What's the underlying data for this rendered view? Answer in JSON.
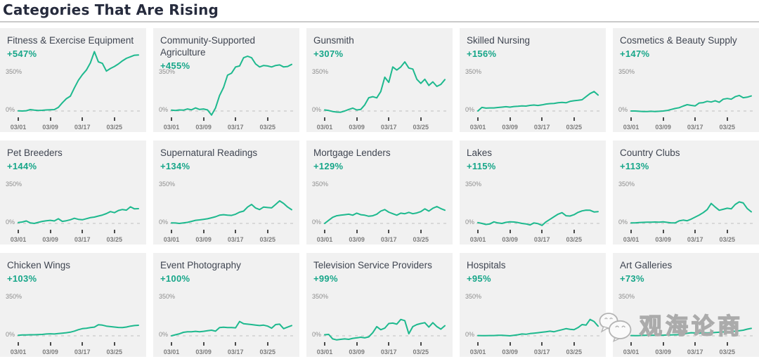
{
  "header": {
    "title": "Categories That Are Rising"
  },
  "watermark": {
    "text": "观海论商",
    "icon": "wechat-icon"
  },
  "axis": {
    "y_top_label": "350%",
    "y_zero_label": "0%",
    "x_ticks": [
      "03/01",
      "03/09",
      "03/17",
      "03/25"
    ],
    "tick_days": [
      1,
      9,
      17,
      25
    ],
    "days_total": 31,
    "y_max": 350
  },
  "colors": {
    "line": "#1eb98e",
    "percent_text": "#17a689",
    "panel_bg": "#f1f1f1",
    "heading_text": "#262b3d",
    "axis_text": "#8c8c8c",
    "zero_dash": "#c9c9c9"
  },
  "chart_data": [
    {
      "type": "line",
      "title": "Fitness & Exercise Equipment",
      "change": "+547%",
      "values": [
        2,
        0,
        3,
        14,
        8,
        5,
        7,
        10,
        12,
        14,
        35,
        80,
        120,
        145,
        225,
        300,
        355,
        400,
        470,
        580,
        480,
        465,
        390,
        415,
        435,
        460,
        490,
        515,
        530,
        545,
        547
      ]
    },
    {
      "type": "line",
      "title": "Community-Supported Agriculture",
      "change": "+455%",
      "values": [
        8,
        5,
        10,
        8,
        20,
        12,
        30,
        15,
        20,
        10,
        -40,
        30,
        150,
        230,
        350,
        370,
        430,
        440,
        520,
        535,
        520,
        460,
        430,
        445,
        440,
        430,
        445,
        450,
        430,
        435,
        455
      ]
    },
    {
      "type": "line",
      "title": "Gunsmith",
      "change": "+307%",
      "values": [
        10,
        5,
        -5,
        -10,
        -12,
        0,
        15,
        28,
        10,
        15,
        60,
        130,
        140,
        128,
        190,
        330,
        280,
        430,
        400,
        430,
        480,
        420,
        410,
        310,
        270,
        310,
        250,
        285,
        240,
        260,
        307
      ]
    },
    {
      "type": "line",
      "title": "Skilled Nursing",
      "change": "+156%",
      "values": [
        0,
        35,
        28,
        30,
        30,
        34,
        38,
        42,
        38,
        44,
        46,
        50,
        48,
        55,
        58,
        54,
        60,
        68,
        72,
        74,
        80,
        84,
        80,
        94,
        100,
        104,
        110,
        140,
        170,
        190,
        156
      ]
    },
    {
      "type": "line",
      "title": "Cosmetics & Beauty Supply",
      "change": "+147%",
      "values": [
        0,
        0,
        -3,
        -5,
        -5,
        -3,
        -5,
        -3,
        0,
        5,
        15,
        25,
        32,
        48,
        62,
        55,
        50,
        78,
        82,
        95,
        88,
        100,
        85,
        115,
        122,
        115,
        140,
        152,
        130,
        135,
        147
      ]
    },
    {
      "type": "line",
      "title": "Pet Breeders",
      "change": "+144%",
      "values": [
        8,
        14,
        24,
        5,
        0,
        10,
        20,
        26,
        30,
        24,
        45,
        20,
        26,
        36,
        50,
        40,
        36,
        46,
        56,
        62,
        72,
        82,
        96,
        115,
        105,
        126,
        136,
        130,
        162,
        142,
        144
      ]
    },
    {
      "type": "line",
      "title": "Supernatural Readings",
      "change": "+134%",
      "values": [
        5,
        4,
        0,
        5,
        10,
        20,
        30,
        34,
        40,
        45,
        55,
        65,
        80,
        85,
        80,
        78,
        90,
        110,
        120,
        160,
        185,
        150,
        135,
        160,
        155,
        152,
        185,
        220,
        195,
        160,
        134
      ]
    },
    {
      "type": "line",
      "title": "Mortgage Lenders",
      "change": "+129%",
      "values": [
        0,
        30,
        60,
        75,
        80,
        85,
        90,
        80,
        100,
        85,
        80,
        70,
        75,
        90,
        120,
        135,
        110,
        95,
        80,
        100,
        95,
        108,
        95,
        102,
        115,
        142,
        120,
        148,
        165,
        145,
        129
      ]
    },
    {
      "type": "line",
      "title": "Lakes",
      "change": "+115%",
      "values": [
        8,
        0,
        -10,
        -5,
        15,
        5,
        0,
        10,
        15,
        14,
        8,
        0,
        -5,
        -15,
        5,
        -2,
        -20,
        15,
        40,
        65,
        90,
        105,
        75,
        72,
        85,
        108,
        122,
        130,
        128,
        112,
        115
      ]
    },
    {
      "type": "line",
      "title": "Country Clubs",
      "change": "+113%",
      "values": [
        5,
        5,
        8,
        10,
        12,
        12,
        14,
        12,
        15,
        10,
        5,
        5,
        25,
        32,
        26,
        42,
        62,
        82,
        105,
        135,
        195,
        160,
        128,
        138,
        148,
        142,
        185,
        210,
        200,
        145,
        113
      ]
    },
    {
      "type": "line",
      "title": "Chicken Wings",
      "change": "+103%",
      "values": [
        5,
        8,
        8,
        10,
        10,
        12,
        14,
        18,
        20,
        18,
        22,
        26,
        30,
        36,
        46,
        60,
        70,
        74,
        80,
        85,
        108,
        104,
        95,
        90,
        86,
        82,
        80,
        86,
        95,
        100,
        103
      ]
    },
    {
      "type": "line",
      "title": "Event Photography",
      "change": "+100%",
      "values": [
        0,
        10,
        20,
        34,
        40,
        40,
        44,
        40,
        44,
        50,
        55,
        45,
        80,
        84,
        80,
        80,
        78,
        140,
        118,
        114,
        110,
        105,
        100,
        104,
        95,
        75,
        110,
        114,
        70,
        85,
        100
      ]
    },
    {
      "type": "line",
      "title": "Television Service Providers",
      "change": "+99%",
      "values": [
        10,
        14,
        -30,
        -40,
        -34,
        -30,
        -34,
        -25,
        -20,
        -14,
        -20,
        -10,
        30,
        90,
        60,
        75,
        120,
        124,
        114,
        160,
        148,
        20,
        90,
        110,
        120,
        128,
        85,
        128,
        90,
        65,
        99
      ]
    },
    {
      "type": "line",
      "title": "Hospitals",
      "change": "+95%",
      "values": [
        3,
        2,
        2,
        3,
        3,
        5,
        5,
        3,
        0,
        5,
        10,
        18,
        15,
        22,
        26,
        30,
        35,
        40,
        45,
        40,
        50,
        60,
        70,
        64,
        60,
        80,
        110,
        104,
        160,
        140,
        95
      ]
    },
    {
      "type": "line",
      "title": "Art Galleries",
      "change": "+73%",
      "values": [
        3,
        2,
        3,
        5,
        5,
        5,
        6,
        5,
        6,
        8,
        8,
        10,
        10,
        18,
        25,
        30,
        28,
        25,
        30,
        28,
        30,
        32,
        35,
        38,
        40,
        42,
        45,
        50,
        55,
        65,
        73
      ]
    }
  ]
}
